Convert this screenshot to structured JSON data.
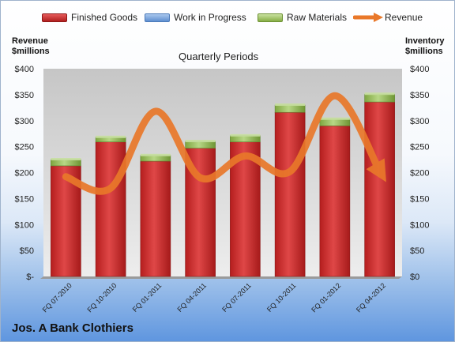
{
  "legend": {
    "finished_goods": "Finished Goods",
    "work_in_progress": "Work in Progress",
    "raw_materials": "Raw Materials",
    "revenue": "Revenue"
  },
  "left_axis_title": [
    "Revenue",
    "$millions"
  ],
  "right_axis_title": [
    "Inventory",
    "$millions"
  ],
  "subtitle": "Quarterly Periods",
  "company": "Jos. A Bank Clothiers",
  "colors": {
    "finished_goods": "#c62828",
    "work_in_progress": "#6f9bd6",
    "raw_materials": "#8fb350",
    "revenue": "#e9782a",
    "plot_bg": "#c9c9c9"
  },
  "chart_data": {
    "type": "bar",
    "stacked": true,
    "categories": [
      "FQ 07-2010",
      "FQ 10-2010",
      "FQ 01-2011",
      "FQ 04-2011",
      "FQ 07-2011",
      "FQ 10-2011",
      "FQ 01-2012",
      "FQ 04-2012"
    ],
    "series": [
      {
        "name": "Finished Goods",
        "axis": "right",
        "values": [
          213,
          259,
          222,
          247,
          259,
          316,
          290,
          336
        ]
      },
      {
        "name": "Work in Progress",
        "axis": "right",
        "values": [
          0,
          0,
          0,
          0,
          0,
          0,
          0,
          0
        ]
      },
      {
        "name": "Raw Materials",
        "axis": "right",
        "values": [
          12,
          9,
          11,
          13,
          12,
          14,
          13,
          15
        ]
      },
      {
        "name": "Revenue",
        "axis": "left",
        "type": "line",
        "values": [
          192,
          170,
          318,
          190,
          232,
          202,
          348,
          203
        ]
      }
    ],
    "left_ylabel": "Revenue $millions",
    "right_ylabel": "Inventory $millions",
    "left_ylim": [
      0,
      400
    ],
    "right_ylim": [
      0,
      400
    ],
    "left_ticks": [
      "$-",
      "$50",
      "$100",
      "$150",
      "$200",
      "$250",
      "$300",
      "$350",
      "$400"
    ],
    "right_ticks": [
      "$0",
      "$50",
      "$100",
      "$150",
      "$200",
      "$250",
      "$300",
      "$350",
      "$400"
    ],
    "grid": false,
    "legend_position": "top"
  }
}
